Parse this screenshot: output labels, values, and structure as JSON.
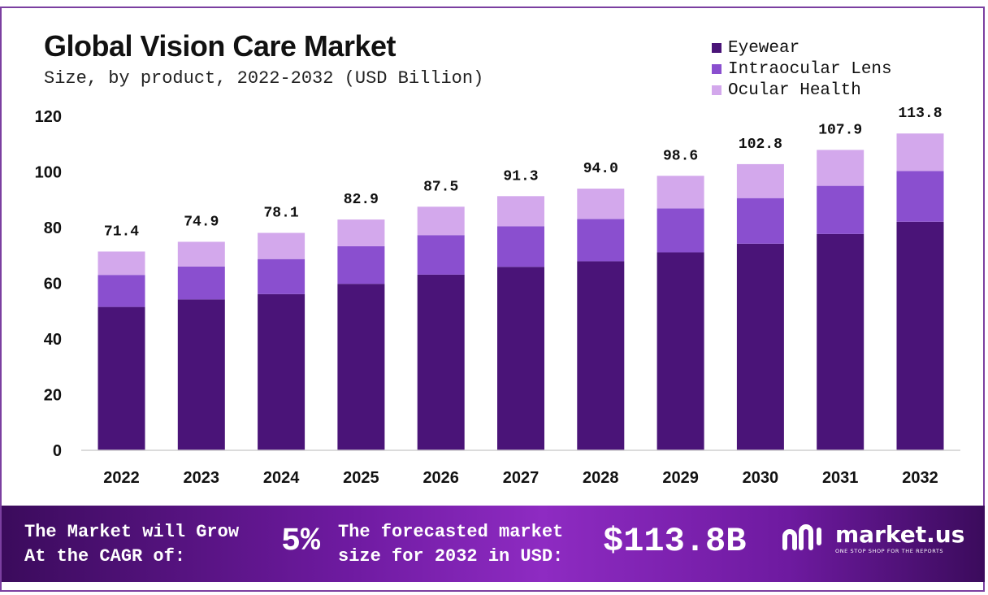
{
  "title": "Global Vision Care Market",
  "subtitle": "Size, by product, 2022-2032 (USD Billion)",
  "legend": [
    {
      "label": "Eyewear",
      "color": "#4a1478"
    },
    {
      "label": "Intraocular Lens",
      "color": "#8a4fcf"
    },
    {
      "label": "Ocular Health",
      "color": "#d3a8ec"
    }
  ],
  "chart_data": {
    "type": "bar",
    "stacked": true,
    "title": "Global Vision Care Market",
    "subtitle": "Size, by product, 2022-2032 (USD Billion)",
    "categories": [
      "2022",
      "2023",
      "2024",
      "2025",
      "2026",
      "2027",
      "2028",
      "2029",
      "2030",
      "2031",
      "2032"
    ],
    "series": [
      {
        "name": "Eyewear",
        "values": [
          51.5,
          54.2,
          56.1,
          59.8,
          63.1,
          65.9,
          67.9,
          71.1,
          74.2,
          77.7,
          82.1
        ]
      },
      {
        "name": "Intraocular Lens",
        "values": [
          11.5,
          11.8,
          12.6,
          13.5,
          14.2,
          14.6,
          15.2,
          15.8,
          16.4,
          17.3,
          18.2
        ]
      },
      {
        "name": "Ocular Health",
        "values": [
          8.4,
          8.9,
          9.4,
          9.6,
          10.2,
          10.8,
          10.9,
          11.7,
          12.2,
          12.9,
          13.5
        ]
      }
    ],
    "totals": [
      "71.4",
      "74.9",
      "78.1",
      "82.9",
      "87.5",
      "91.3",
      "94.0",
      "98.6",
      "102.8",
      "107.9",
      "113.8"
    ],
    "yticks": [
      "0",
      "20",
      "40",
      "60",
      "80",
      "100",
      "120"
    ],
    "ylim": [
      0,
      120
    ],
    "xlabel": "",
    "ylabel": "",
    "grid": false,
    "legend_position": "top-right"
  },
  "footer": {
    "cagr_text_line1": "The Market will Grow",
    "cagr_text_line2": "At the CAGR of:",
    "cagr_value": "5%",
    "forecast_text_line1": "The forecasted market",
    "forecast_text_line2": "size for 2032 in USD:",
    "forecast_value": "$113.8B",
    "brand_name": "market.us",
    "brand_tagline": "ONE STOP SHOP FOR THE REPORTS"
  }
}
